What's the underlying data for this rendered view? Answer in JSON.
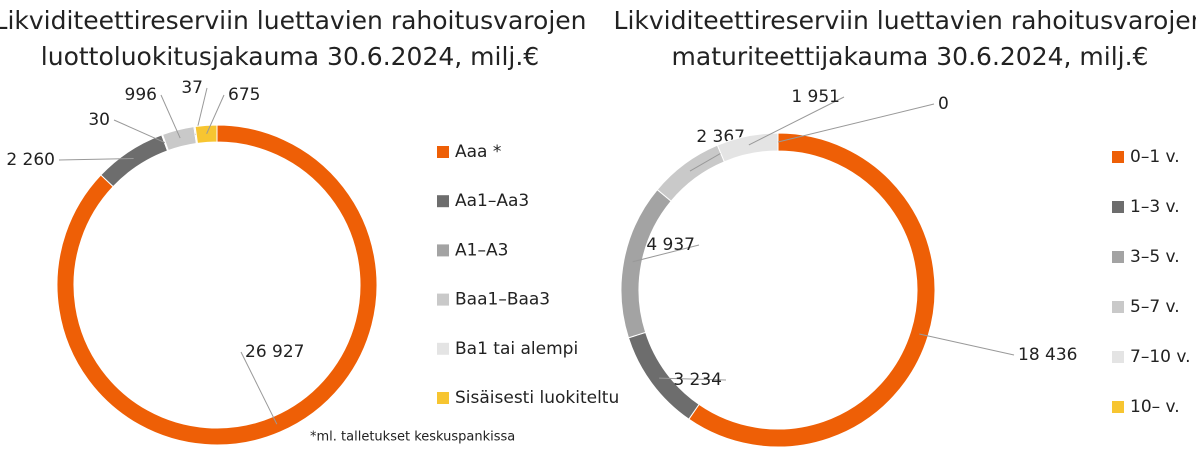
{
  "chart_data": [
    {
      "type": "donut",
      "title": [
        "Likviditeettireserviin luettavien rahoitusvarojen",
        "luottoluokitusjakauma 30.6.2024, milj.€"
      ],
      "categories": [
        "Aaa *",
        "Aa1–Aa3",
        "A1–A3",
        "Baa1–Baa3",
        "Ba1 tai alempi",
        "Sisäisesti luokiteltu"
      ],
      "values": [
        26927,
        2260,
        30,
        996,
        37,
        675
      ],
      "value_labels": [
        "26 927",
        "2 260",
        "30",
        "996",
        "37",
        "675"
      ],
      "colors": [
        "#ee5f06",
        "#6d6d6d",
        "#a3a3a3",
        "#c9c9c9",
        "#e4e4e4",
        "#f7c531"
      ],
      "annotation": "*ml. talletukset keskuspankissa"
    },
    {
      "type": "donut",
      "title": [
        "Likviditeettireserviin luettavien rahoitusvarojen",
        "maturiteettijakauma 30.6.2024, milj.€"
      ],
      "categories": [
        "0–1 v.",
        "1–3 v.",
        "3–5 v.",
        "5–7 v.",
        "7–10 v.",
        "10– v."
      ],
      "values": [
        18436,
        3234,
        4937,
        2367,
        1951,
        0
      ],
      "value_labels": [
        "18 436",
        "3 234",
        "4 937",
        "2 367",
        "1 951",
        "0"
      ],
      "colors": [
        "#ee5f06",
        "#6d6d6d",
        "#a3a3a3",
        "#c9c9c9",
        "#e4e4e4",
        "#f7c531"
      ]
    }
  ]
}
